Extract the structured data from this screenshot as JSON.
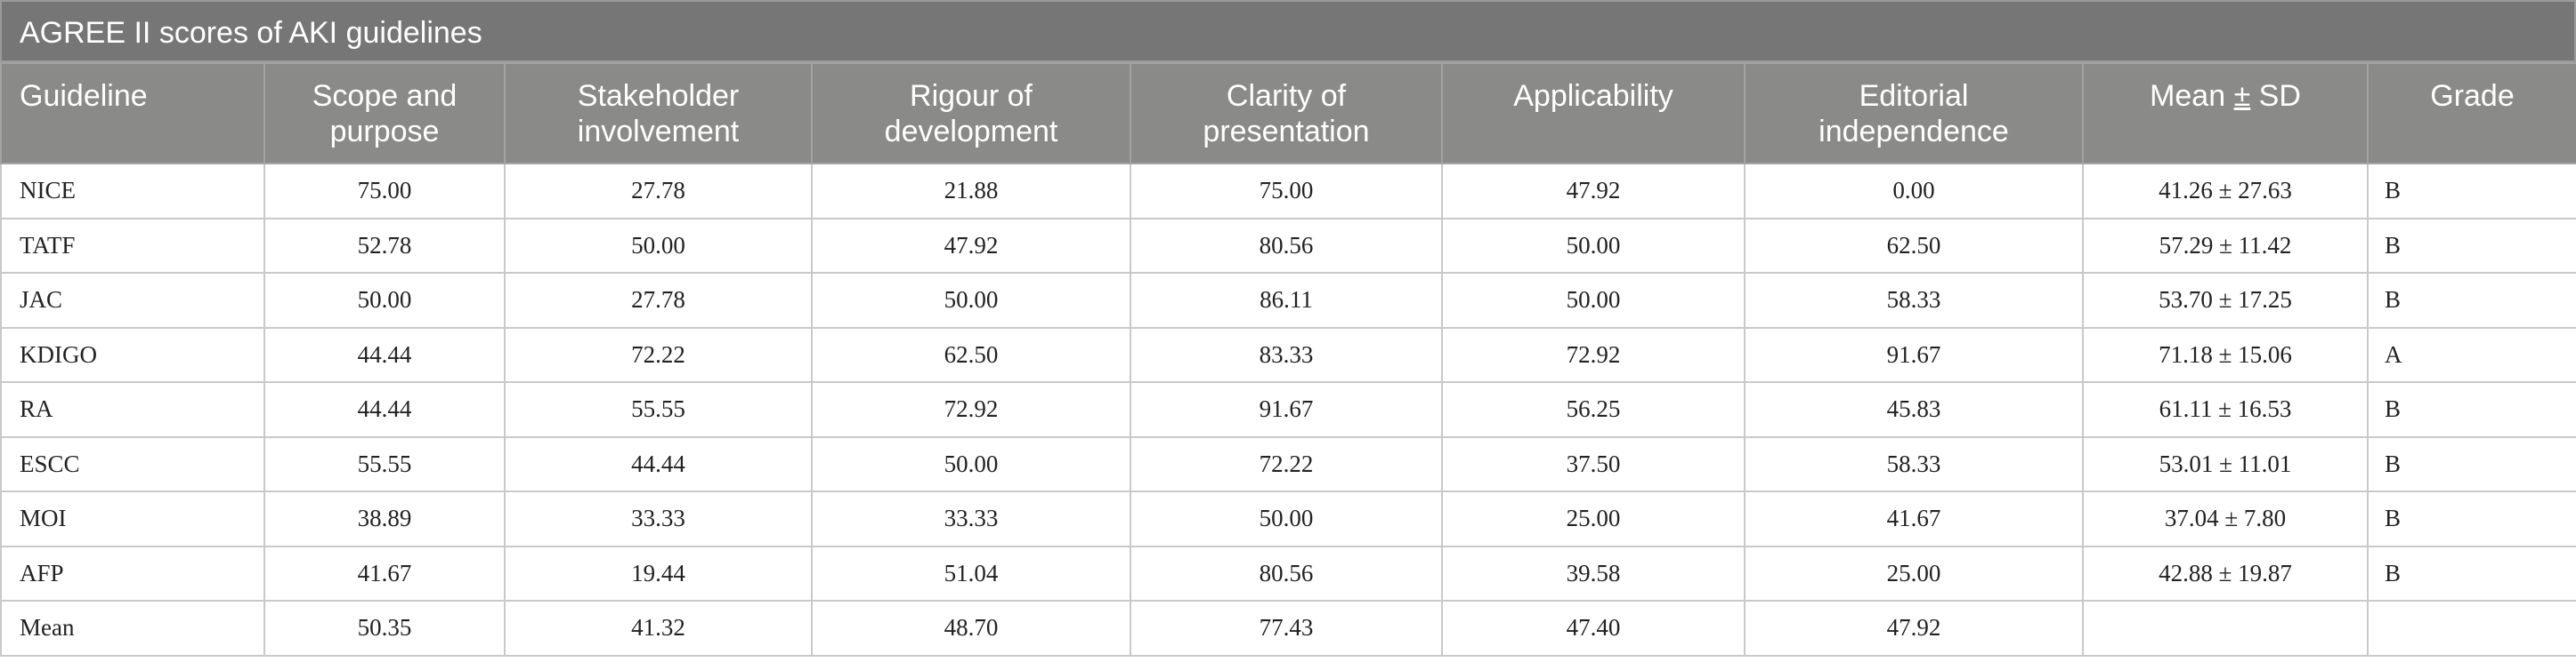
{
  "caption": "AGREE II scores of AKI guidelines",
  "columns": {
    "guideline": "Guideline",
    "scope": [
      "Scope and",
      "purpose"
    ],
    "stakeholder": [
      "Stakeholder",
      "involvement"
    ],
    "rigour": [
      "Rigour of",
      "development"
    ],
    "clarity": [
      "Clarity of",
      "presentation"
    ],
    "applicability": "Applicability",
    "editorial": [
      "Editorial",
      "independence"
    ],
    "mean_sd": {
      "pre": "Mean ",
      "pm": "±",
      "post": " SD"
    },
    "grade": "Grade"
  },
  "rows": [
    [
      "NICE",
      "75.00",
      "27.78",
      "21.88",
      "75.00",
      "47.92",
      "0.00",
      "41.26 ± 27.63",
      "B"
    ],
    [
      "TATF",
      "52.78",
      "50.00",
      "47.92",
      "80.56",
      "50.00",
      "62.50",
      "57.29 ± 11.42",
      "B"
    ],
    [
      "JAC",
      "50.00",
      "27.78",
      "50.00",
      "86.11",
      "50.00",
      "58.33",
      "53.70 ± 17.25",
      "B"
    ],
    [
      "KDIGO",
      "44.44",
      "72.22",
      "62.50",
      "83.33",
      "72.92",
      "91.67",
      "71.18 ± 15.06",
      "A"
    ],
    [
      "RA",
      "44.44",
      "55.55",
      "72.92",
      "91.67",
      "56.25",
      "45.83",
      "61.11 ± 16.53",
      "B"
    ],
    [
      "ESCC",
      "55.55",
      "44.44",
      "50.00",
      "72.22",
      "37.50",
      "58.33",
      "53.01 ± 11.01",
      "B"
    ],
    [
      "MOI",
      "38.89",
      "33.33",
      "33.33",
      "50.00",
      "25.00",
      "41.67",
      "37.04 ± 7.80",
      "B"
    ],
    [
      "AFP",
      "41.67",
      "19.44",
      "51.04",
      "80.56",
      "39.58",
      "25.00",
      "42.88 ± 19.87",
      "B"
    ],
    [
      "Mean",
      "50.35",
      "41.32",
      "48.70",
      "77.43",
      "47.40",
      "47.92",
      "",
      ""
    ]
  ]
}
